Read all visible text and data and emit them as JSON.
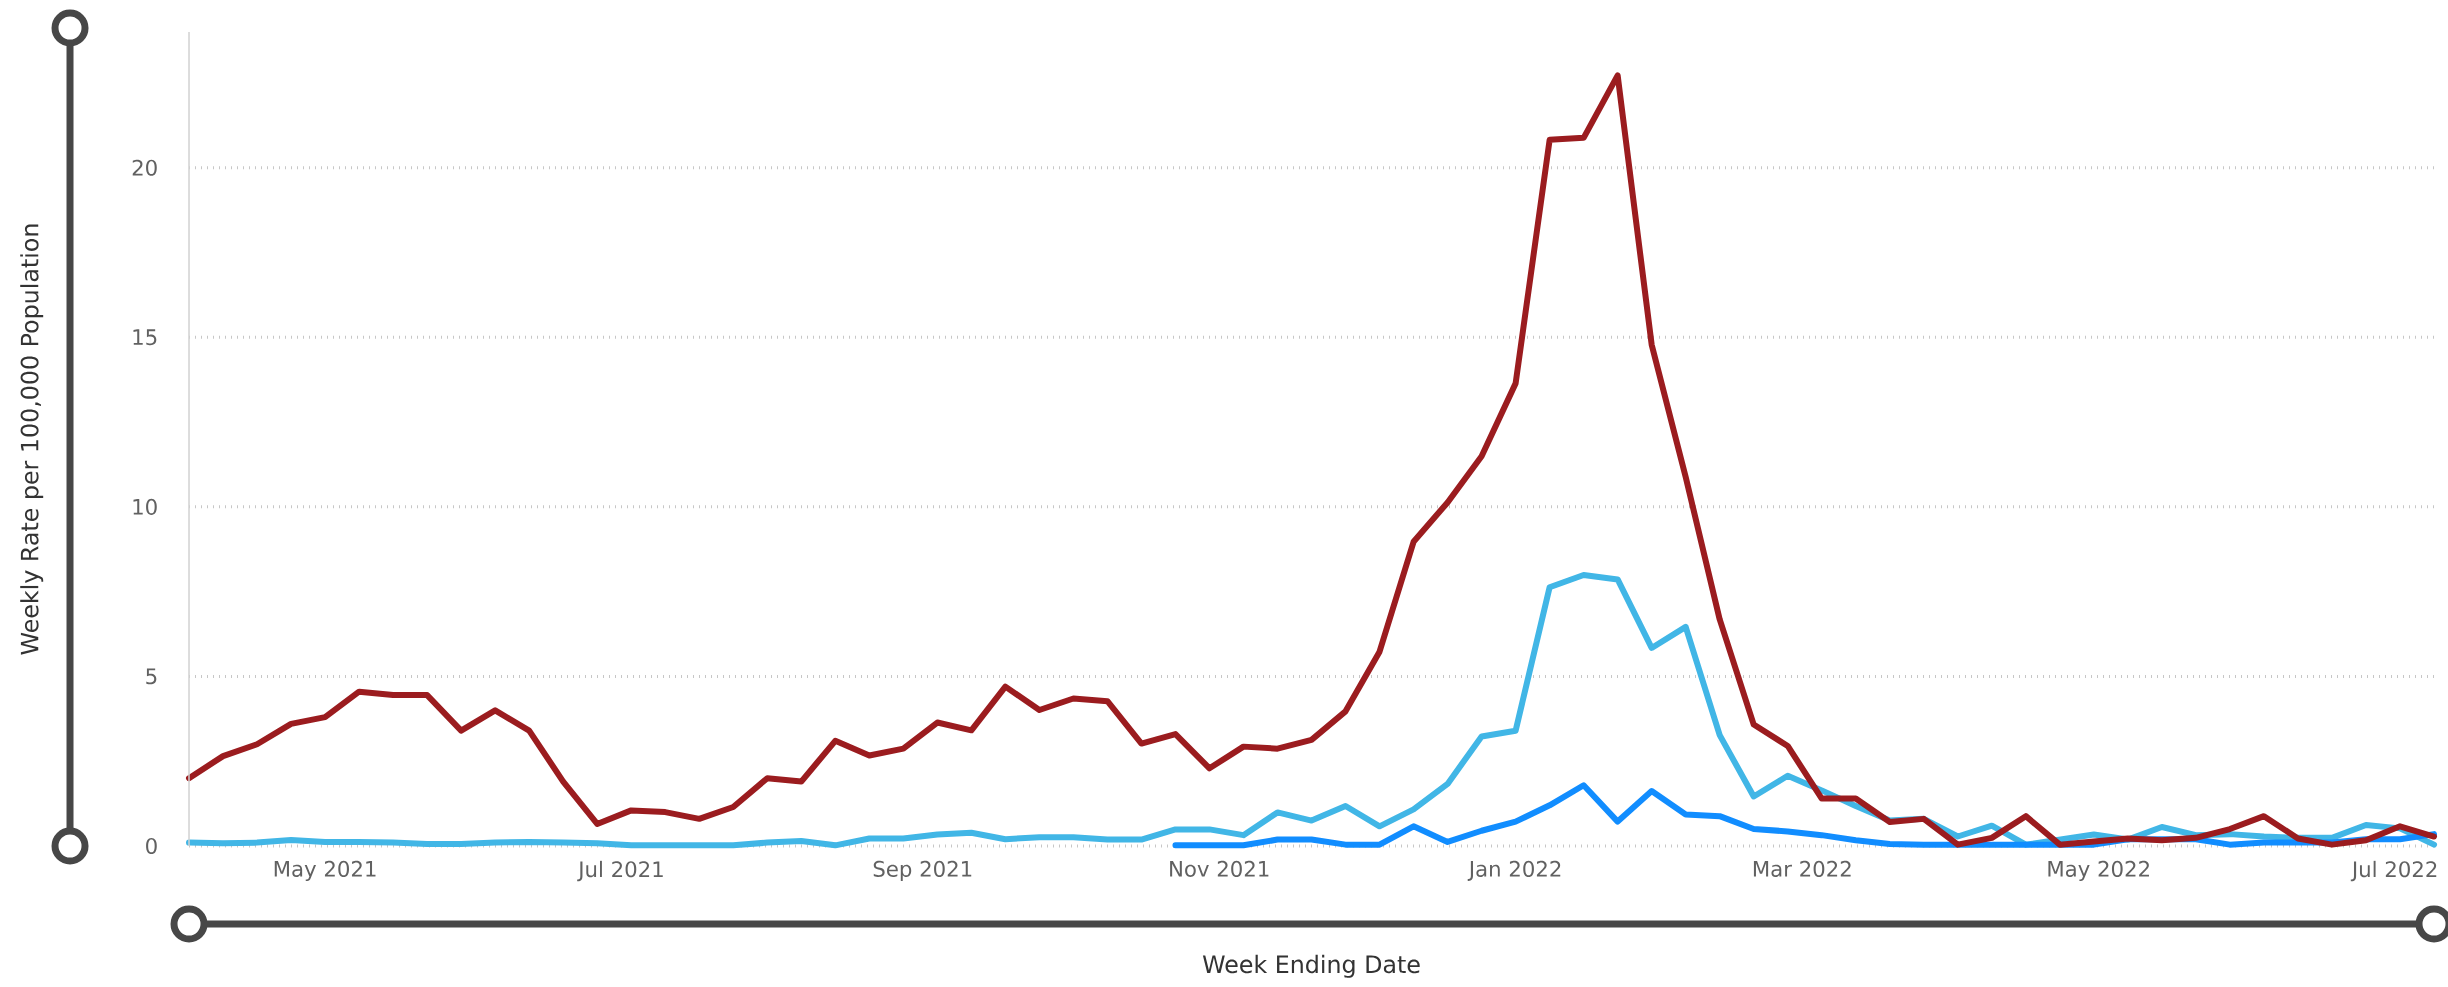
{
  "chart_data": {
    "type": "line",
    "xlabel": "Week Ending Date",
    "ylabel": "Weekly Rate per 100,000 Population",
    "x": [
      "2021-04-03",
      "2021-04-10",
      "2021-04-17",
      "2021-04-24",
      "2021-05-01",
      "2021-05-08",
      "2021-05-15",
      "2021-05-22",
      "2021-05-29",
      "2021-06-05",
      "2021-06-12",
      "2021-06-19",
      "2021-06-26",
      "2021-07-03",
      "2021-07-10",
      "2021-07-17",
      "2021-07-24",
      "2021-07-31",
      "2021-08-07",
      "2021-08-14",
      "2021-08-21",
      "2021-08-28",
      "2021-09-04",
      "2021-09-11",
      "2021-09-18",
      "2021-09-25",
      "2021-10-02",
      "2021-10-09",
      "2021-10-16",
      "2021-10-23",
      "2021-10-30",
      "2021-11-06",
      "2021-11-13",
      "2021-11-20",
      "2021-11-27",
      "2021-12-04",
      "2021-12-11",
      "2021-12-18",
      "2021-12-25",
      "2022-01-01",
      "2022-01-08",
      "2022-01-15",
      "2022-01-22",
      "2022-01-29",
      "2022-02-05",
      "2022-02-12",
      "2022-02-19",
      "2022-02-26",
      "2022-03-05",
      "2022-03-12",
      "2022-03-19",
      "2022-03-26",
      "2022-04-02",
      "2022-04-09",
      "2022-04-16",
      "2022-04-23",
      "2022-04-30",
      "2022-05-07",
      "2022-05-14",
      "2022-05-21",
      "2022-05-28",
      "2022-06-04",
      "2022-06-11",
      "2022-06-18",
      "2022-06-25",
      "2022-07-02",
      "2022-07-09"
    ],
    "series": [
      {
        "color": "#41b6e6",
        "values": [
          0.1,
          0.08,
          0.1,
          0.18,
          0.12,
          0.12,
          0.1,
          0.06,
          0.06,
          0.1,
          0.12,
          0.1,
          0.08,
          0.02,
          0.02,
          0.02,
          0.02,
          0.1,
          0.15,
          0.02,
          0.22,
          0.22,
          0.34,
          0.39,
          0.2,
          0.26,
          0.26,
          0.19,
          0.19,
          0.49,
          0.49,
          0.32,
          0.99,
          0.75,
          1.18,
          0.58,
          1.08,
          1.83,
          3.23,
          3.4,
          7.63,
          7.99,
          7.86,
          5.84,
          6.46,
          3.27,
          1.46,
          2.07,
          1.64,
          1.18,
          0.75,
          0.8,
          0.28,
          0.6,
          0.04,
          0.19,
          0.34,
          0.19,
          0.56,
          0.32,
          0.35,
          0.28,
          0.24,
          0.24,
          0.62,
          0.52,
          0.04
        ]
      },
      {
        "color": "#118dff",
        "values": [
          null,
          null,
          null,
          null,
          null,
          null,
          null,
          null,
          null,
          null,
          null,
          null,
          null,
          null,
          null,
          null,
          null,
          null,
          null,
          null,
          null,
          null,
          null,
          null,
          null,
          null,
          null,
          null,
          null,
          0.02,
          0.02,
          0.02,
          0.19,
          0.19,
          0.04,
          0.04,
          0.58,
          0.12,
          0.45,
          0.72,
          1.2,
          1.79,
          0.72,
          1.62,
          0.93,
          0.88,
          0.5,
          0.43,
          0.32,
          0.17,
          0.06,
          0.04,
          0.04,
          0.04,
          0.04,
          0.04,
          0.04,
          0.2,
          0.2,
          0.2,
          0.04,
          0.1,
          0.1,
          0.1,
          0.2,
          0.2,
          0.35
        ]
      },
      {
        "color": "#9b1c1f",
        "values": [
          2.0,
          2.65,
          3.0,
          3.6,
          3.8,
          4.55,
          4.45,
          4.45,
          3.4,
          4.0,
          3.4,
          1.9,
          0.65,
          1.05,
          1.0,
          0.8,
          1.15,
          2.0,
          1.9,
          3.1,
          2.67,
          2.87,
          3.64,
          3.41,
          4.7,
          4.01,
          4.35,
          4.27,
          3.02,
          3.3,
          2.29,
          2.93,
          2.87,
          3.13,
          3.97,
          5.73,
          8.97,
          10.13,
          11.49,
          13.64,
          20.82,
          20.88,
          22.72,
          14.78,
          10.88,
          6.68,
          3.58,
          2.95,
          1.4,
          1.4,
          0.71,
          0.8,
          0.04,
          0.24,
          0.88,
          0.04,
          0.13,
          0.22,
          0.17,
          0.24,
          0.5,
          0.88,
          0.22,
          0.04,
          0.17,
          0.58,
          0.28
        ]
      }
    ],
    "xlim": [
      "2021-04-03",
      "2022-07-09"
    ],
    "xticks": [
      {
        "value": "2021-05-01",
        "label": "May 2021"
      },
      {
        "value": "2021-07-01",
        "label": "Jul 2021"
      },
      {
        "value": "2021-09-01",
        "label": "Sep 2021"
      },
      {
        "value": "2021-11-01",
        "label": "Nov 2021"
      },
      {
        "value": "2022-01-01",
        "label": "Jan 2022"
      },
      {
        "value": "2022-03-01",
        "label": "Mar 2022"
      },
      {
        "value": "2022-05-01",
        "label": "May 2022"
      },
      {
        "value": "2022-07-01",
        "label": "Jul 2022"
      }
    ],
    "ylim": [
      0,
      24
    ],
    "yticks": [
      0,
      5,
      10,
      15,
      20
    ],
    "grid": "y"
  }
}
